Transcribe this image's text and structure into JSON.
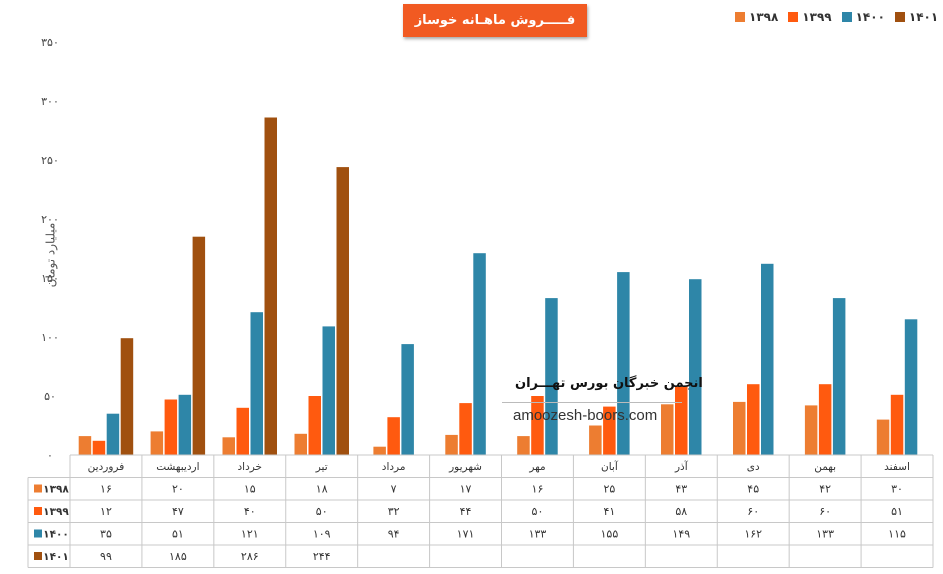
{
  "chart_data": {
    "type": "bar",
    "title": "فـــــروش ماهـانه خوساز",
    "ylabel": "میلیارد تومان",
    "xlabel": "",
    "ylim": [
      0,
      350
    ],
    "yticks": [
      "۰",
      "۵۰",
      "۱۰۰",
      "۱۵۰",
      "۲۰۰",
      "۲۵۰",
      "۳۰۰",
      "۳۵۰"
    ],
    "categories": [
      "فروردین",
      "اردیبهشت",
      "خرداد",
      "تیر",
      "مرداد",
      "شهریور",
      "مهر",
      "آبان",
      "آذر",
      "دی",
      "بهمن",
      "اسفند"
    ],
    "series": [
      {
        "name": "۱۳۹۸",
        "color": "#ed7d31",
        "values": [
          16,
          20,
          15,
          18,
          7,
          17,
          16,
          25,
          43,
          45,
          42,
          30
        ],
        "labels": [
          "۱۶",
          "۲۰",
          "۱۵",
          "۱۸",
          "۷",
          "۱۷",
          "۱۶",
          "۲۵",
          "۴۳",
          "۴۵",
          "۴۲",
          "۳۰"
        ]
      },
      {
        "name": "۱۳۹۹",
        "color": "#ff5a0f",
        "values": [
          12,
          47,
          40,
          50,
          32,
          44,
          50,
          41,
          58,
          60,
          60,
          51
        ],
        "labels": [
          "۱۲",
          "۴۷",
          "۴۰",
          "۵۰",
          "۳۲",
          "۴۴",
          "۵۰",
          "۴۱",
          "۵۸",
          "۶۰",
          "۶۰",
          "۵۱"
        ]
      },
      {
        "name": "۱۴۰۰",
        "color": "#2e86a8",
        "values": [
          35,
          51,
          121,
          109,
          94,
          171,
          133,
          155,
          149,
          162,
          133,
          115
        ],
        "labels": [
          "۳۵",
          "۵۱",
          "۱۲۱",
          "۱۰۹",
          "۹۴",
          "۱۷۱",
          "۱۳۳",
          "۱۵۵",
          "۱۴۹",
          "۱۶۲",
          "۱۳۳",
          "۱۱۵"
        ]
      },
      {
        "name": "۱۴۰۱",
        "color": "#a0500f",
        "values": [
          99,
          185,
          286,
          244,
          null,
          null,
          null,
          null,
          null,
          null,
          null,
          null
        ],
        "labels": [
          "۹۹",
          "۱۸۵",
          "۲۸۶",
          "۲۴۴",
          "",
          "",
          "",
          "",
          "",
          "",
          "",
          ""
        ]
      }
    ],
    "legend": "top-right",
    "grid": false
  },
  "watermark": {
    "title": "انجمن خبرگان بورس تهـــران",
    "url": "amoozesh-boors.com"
  }
}
